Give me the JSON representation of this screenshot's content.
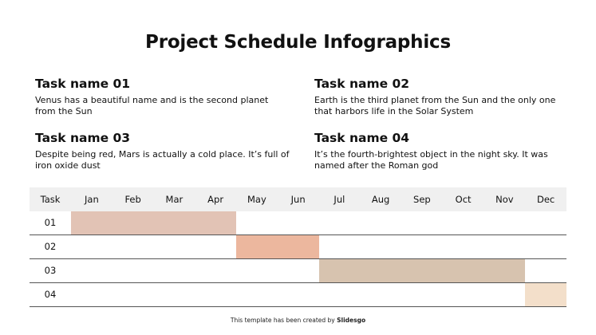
{
  "title": "Project Schedule Infographics",
  "tasks": [
    {
      "name": "Task name 01",
      "desc": "Venus has a beautiful name and is the second planet from the Sun"
    },
    {
      "name": "Task name 02",
      "desc": "Earth is the third planet from the Sun and the only one that harbors life in the Solar System"
    },
    {
      "name": "Task name 03",
      "desc": "Despite being red, Mars is actually a cold place. It’s full of iron oxide dust"
    },
    {
      "name": "Task name 04",
      "desc": "It’s the fourth-brightest object in the night sky. It was named after the Roman god"
    }
  ],
  "gantt": {
    "task_header": "Task",
    "months": [
      "Jan",
      "Feb",
      "Mar",
      "Apr",
      "May",
      "Jun",
      "Jul",
      "Aug",
      "Sep",
      "Oct",
      "Nov",
      "Dec"
    ],
    "rows": [
      {
        "label": "01",
        "start_month": "Jan",
        "end_month": "Apr",
        "color": "#e2c3b5"
      },
      {
        "label": "02",
        "start_month": "May",
        "end_month": "Jun",
        "color": "#ecb79e"
      },
      {
        "label": "03",
        "start_month": "Jul",
        "end_month": "Nov",
        "color": "#d7c3af"
      },
      {
        "label": "04",
        "start_month": "Dec",
        "end_month": "Dec",
        "color": "#f3dfca"
      }
    ]
  },
  "footer": {
    "prefix": "This template has been created by ",
    "brand": "Slidesgo"
  }
}
